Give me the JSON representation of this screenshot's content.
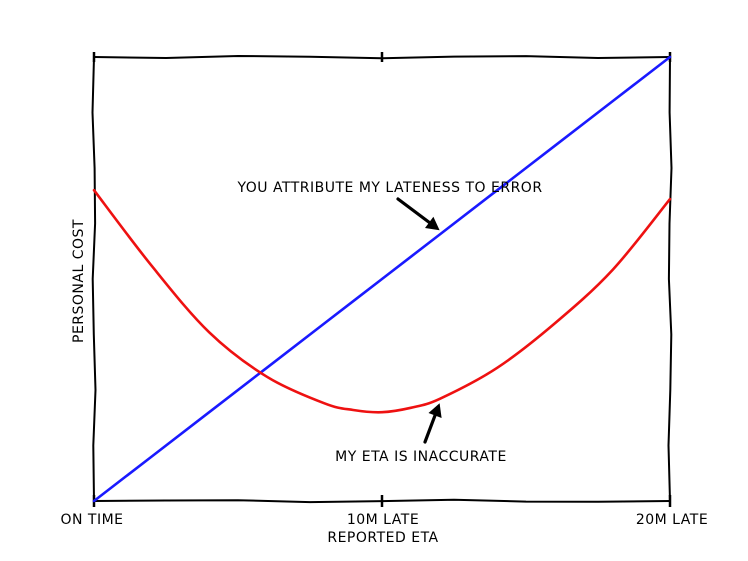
{
  "chart_data": {
    "type": "line",
    "title": "",
    "xlabel": "REPORTED ETA",
    "ylabel": "PERSONAL COST",
    "xlim": [
      0,
      20
    ],
    "ylim": [
      0,
      1
    ],
    "grid": false,
    "legend": "none",
    "x_ticks": [
      {
        "value": 0,
        "label": "ON TIME"
      },
      {
        "value": 10,
        "label": "10M LATE"
      },
      {
        "value": 20,
        "label": "20M LATE"
      }
    ],
    "series": [
      {
        "color": "#1a1aff",
        "x": [
          0,
          2,
          4,
          6,
          8,
          10,
          12,
          14,
          16,
          18,
          20
        ],
        "y": [
          0,
          0.1,
          0.2,
          0.3,
          0.4,
          0.5,
          0.6,
          0.7,
          0.8,
          0.9,
          1.0
        ]
      },
      {
        "color": "#ee1111",
        "x": [
          0,
          2,
          4,
          6,
          8,
          9,
          10,
          11,
          12,
          14,
          16,
          18,
          20
        ],
        "y": [
          0.7,
          0.53,
          0.38,
          0.28,
          0.22,
          0.205,
          0.2,
          0.21,
          0.23,
          0.3,
          0.4,
          0.52,
          0.68
        ]
      }
    ],
    "annotations": [
      {
        "text": "YOU ATTRIBUTE MY LATENESS TO ERROR",
        "x": 12,
        "y": 0.61
      },
      {
        "text": "MY ETA IS INACCURATE",
        "x": 12,
        "y": 0.22
      }
    ]
  }
}
